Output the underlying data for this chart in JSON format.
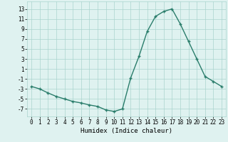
{
  "x": [
    0,
    1,
    2,
    3,
    4,
    5,
    6,
    7,
    8,
    9,
    10,
    11,
    12,
    13,
    14,
    15,
    16,
    17,
    18,
    19,
    20,
    21,
    22,
    23
  ],
  "y": [
    -2.5,
    -3.0,
    -3.8,
    -4.5,
    -5.0,
    -5.5,
    -5.8,
    -6.2,
    -6.5,
    -7.2,
    -7.5,
    -7.0,
    -0.8,
    3.5,
    8.5,
    11.5,
    12.5,
    13.0,
    10.0,
    6.5,
    3.0,
    -0.5,
    -1.5,
    -2.5
  ],
  "xlabel": "Humidex (Indice chaleur)",
  "xlim": [
    -0.5,
    23.5
  ],
  "ylim": [
    -8.5,
    14.5
  ],
  "yticks": [
    -7,
    -5,
    -3,
    -1,
    1,
    3,
    5,
    7,
    9,
    11,
    13
  ],
  "xticks": [
    0,
    1,
    2,
    3,
    4,
    5,
    6,
    7,
    8,
    9,
    10,
    11,
    12,
    13,
    14,
    15,
    16,
    17,
    18,
    19,
    20,
    21,
    22,
    23
  ],
  "line_color": "#2a7d6b",
  "marker": "+",
  "bg_color": "#dff2f0",
  "grid_color": "#aad4ce",
  "tick_fontsize": 5.5,
  "xlabel_fontsize": 6.5,
  "linewidth": 1.0,
  "markersize": 3.5,
  "markeredgewidth": 1.0
}
